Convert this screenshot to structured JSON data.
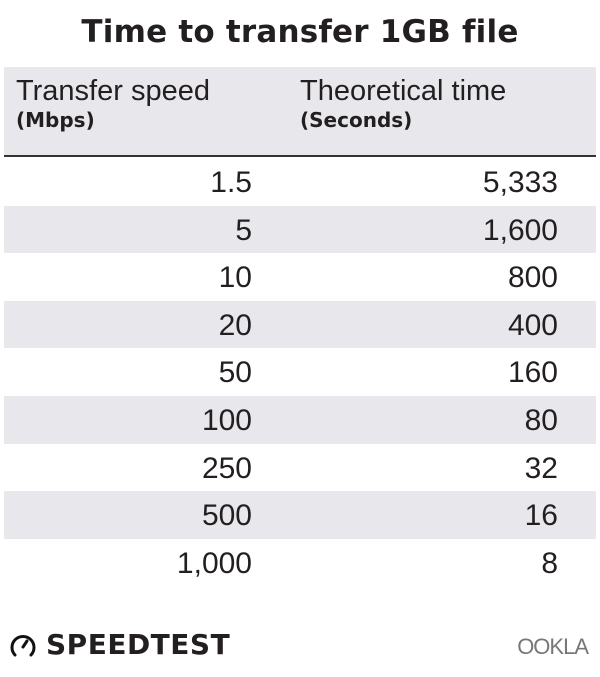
{
  "chart_data": {
    "type": "table",
    "title": "Time to transfer 1GB file",
    "columns": [
      {
        "label": "Transfer speed",
        "unit": "(Mbps)"
      },
      {
        "label": "Theoretical time",
        "unit": "(Seconds)"
      }
    ],
    "rows": [
      [
        "1.5",
        "5,333"
      ],
      [
        "5",
        "1,600"
      ],
      [
        "10",
        "800"
      ],
      [
        "20",
        "400"
      ],
      [
        "50",
        "160"
      ],
      [
        "100",
        "80"
      ],
      [
        "250",
        "32"
      ],
      [
        "500",
        "16"
      ],
      [
        "1,000",
        "8"
      ]
    ]
  },
  "branding": {
    "speedtest": "SPEEDTEST",
    "ookla": "OOKLA",
    "speedtest_icon": "gauge-icon"
  },
  "colors": {
    "stripe": "#e8e8ec",
    "text": "#231f20"
  }
}
